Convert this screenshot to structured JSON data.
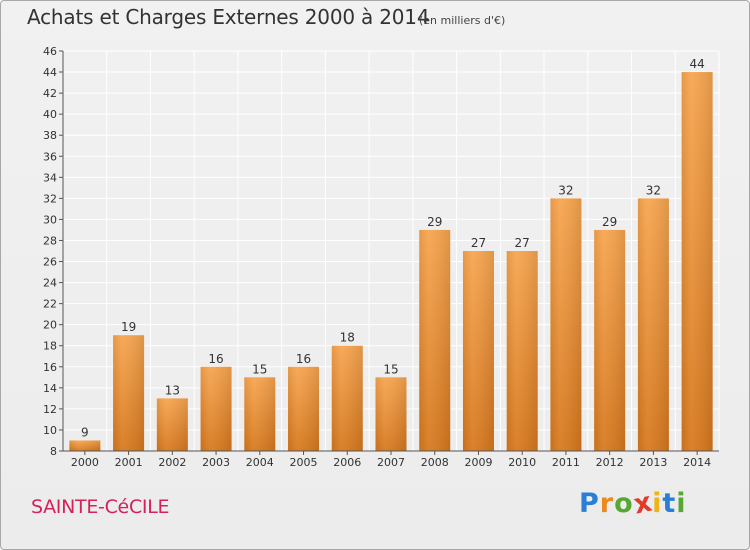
{
  "title": "Achats et Charges Externes 2000 à 2014",
  "subtitle": "(en milliers d'€)",
  "commune": "SAINTE-CéCILE",
  "logo": {
    "letters": [
      "P",
      "r",
      "o",
      "x",
      "i",
      "t",
      "i"
    ],
    "colors": [
      "#2a7fd4",
      "#e98a1f",
      "#56a831",
      "#e23b2a",
      "#f0b418",
      "#2a7fd4",
      "#56a831"
    ]
  },
  "colors": {
    "bar_light": "#f7a54f",
    "bar_dark": "#d7781d",
    "grid": "#ffffff",
    "axis_text": "#333333"
  },
  "chart_data": {
    "type": "bar",
    "categories": [
      "2000",
      "2001",
      "2002",
      "2003",
      "2004",
      "2005",
      "2006",
      "2007",
      "2008",
      "2009",
      "2010",
      "2011",
      "2012",
      "2013",
      "2014"
    ],
    "values": [
      9,
      19,
      13,
      16,
      15,
      16,
      18,
      15,
      29,
      27,
      27,
      32,
      29,
      32,
      44
    ],
    "data_labels": [
      "9",
      "19",
      "13",
      "16",
      "15",
      "16",
      "18",
      "15",
      "29",
      "27",
      "27",
      "32",
      "29",
      "32",
      "44"
    ],
    "ylim": [
      8,
      46
    ],
    "yticks": [
      8,
      10,
      12,
      14,
      16,
      18,
      20,
      22,
      24,
      26,
      28,
      30,
      32,
      34,
      36,
      38,
      40,
      42,
      44,
      46
    ],
    "grid": true,
    "xlabel": "",
    "ylabel": ""
  }
}
